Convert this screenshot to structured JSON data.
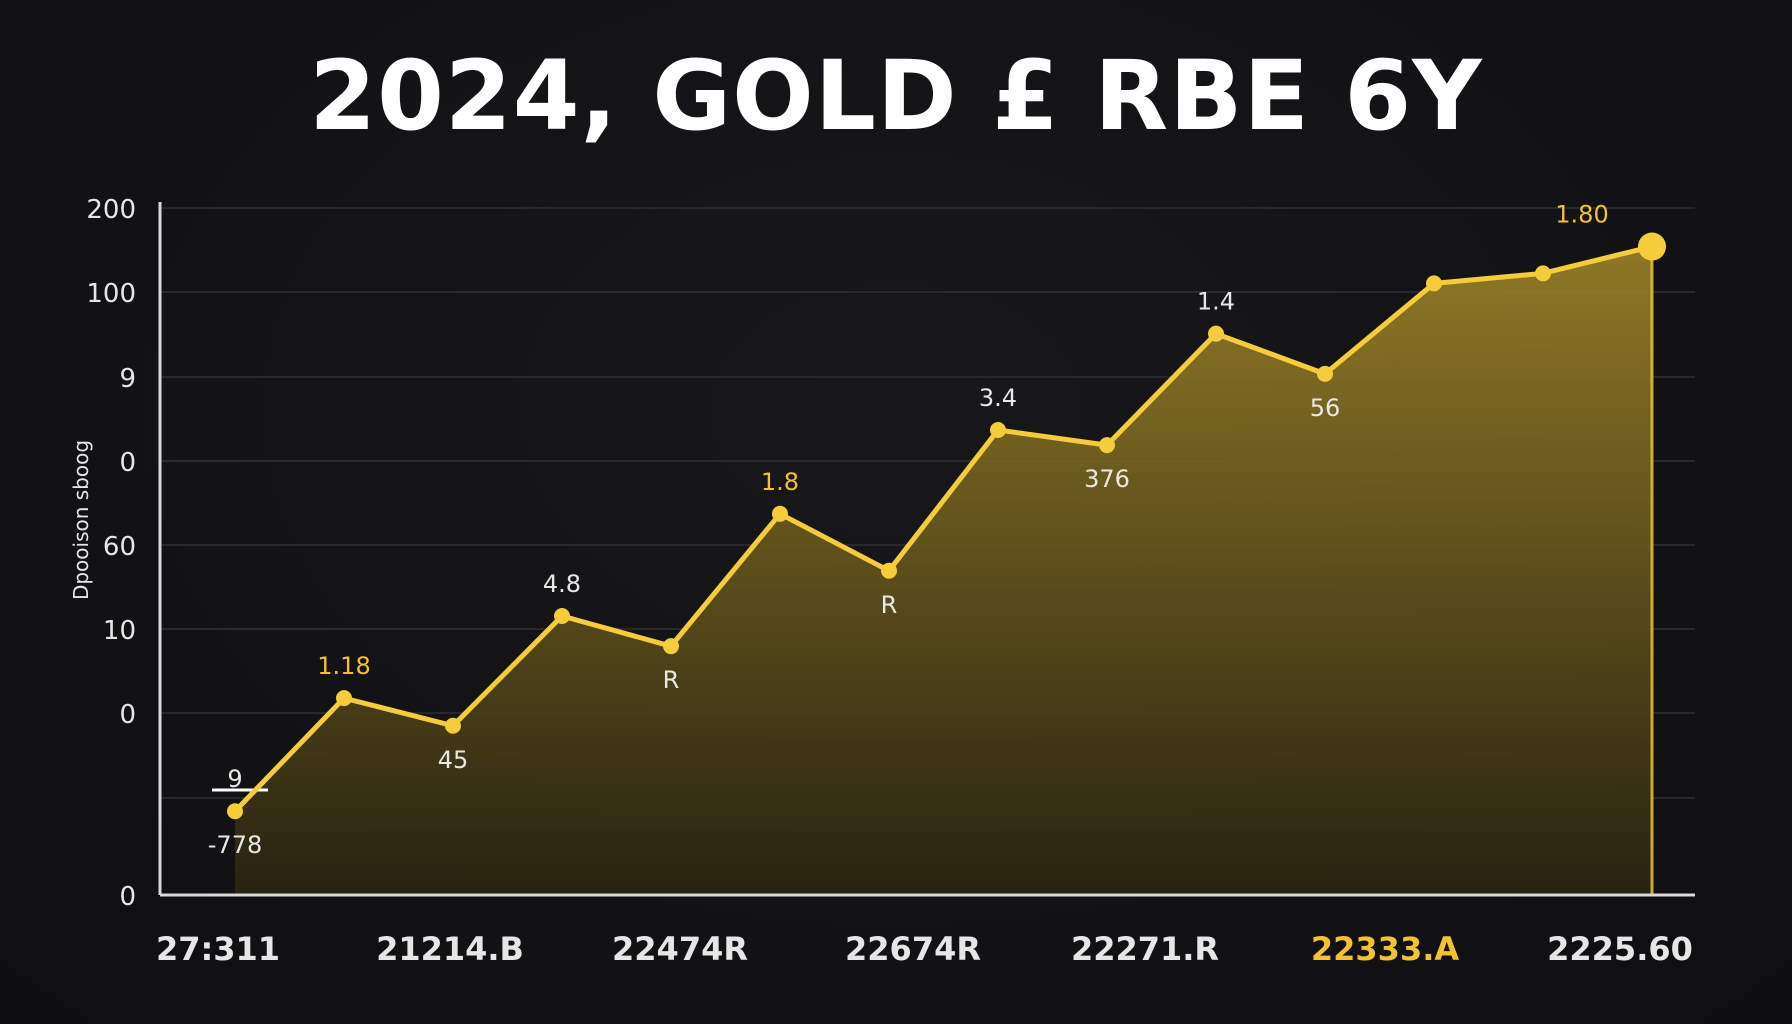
{
  "chart_data": {
    "type": "area",
    "title": "2024, GOLD £ RBE 6Y",
    "ylabel": "Dpooison sboog",
    "y_tick_labels": [
      "0",
      "",
      "0",
      "10",
      "60",
      "0",
      "9",
      "100",
      "200"
    ],
    "x_tick_labels": [
      "27:311",
      "21214.B",
      "22474R",
      "22674R",
      "22271.R",
      "22333.A",
      "2225.60"
    ],
    "x_tick_highlight_index": 5,
    "grid": true,
    "legend": "none",
    "series": [
      {
        "values": [
          1.0,
          2.35,
          2.02,
          3.33,
          2.97,
          4.55,
          3.87,
          5.55,
          5.37,
          6.7,
          6.22,
          7.3,
          7.42,
          7.74
        ]
      }
    ],
    "data_labels": [
      {
        "index": 0,
        "text": "-778",
        "pos": "below"
      },
      {
        "index": 0,
        "text": "9",
        "pos": "above"
      },
      {
        "index": 1,
        "text": "1.18",
        "pos": "above",
        "accent": true
      },
      {
        "index": 2,
        "text": "45",
        "pos": "below"
      },
      {
        "index": 3,
        "text": "4.8",
        "pos": "above"
      },
      {
        "index": 4,
        "text": "R",
        "pos": "below"
      },
      {
        "index": 5,
        "text": "1.8",
        "pos": "above",
        "accent": true
      },
      {
        "index": 6,
        "text": "R",
        "pos": "below"
      },
      {
        "index": 7,
        "text": "3.4",
        "pos": "above"
      },
      {
        "index": 8,
        "text": "376",
        "pos": "below"
      },
      {
        "index": 9,
        "text": "1.4",
        "pos": "above"
      },
      {
        "index": 10,
        "text": "56",
        "pos": "below"
      },
      {
        "index": 13,
        "text": "1.80",
        "pos": "above",
        "accent": true
      }
    ],
    "ylim": [
      0,
      8.2
    ],
    "colors": {
      "line": "#f5cc3a",
      "area_top": "#9a8127",
      "area_bottom": "#2a2410",
      "accent_text": "#f2c230",
      "label_text": "#e8e8e8",
      "axis_text": "#e6e6e6",
      "grid": "#2e2e33",
      "axis": "#d8d8d8"
    }
  }
}
